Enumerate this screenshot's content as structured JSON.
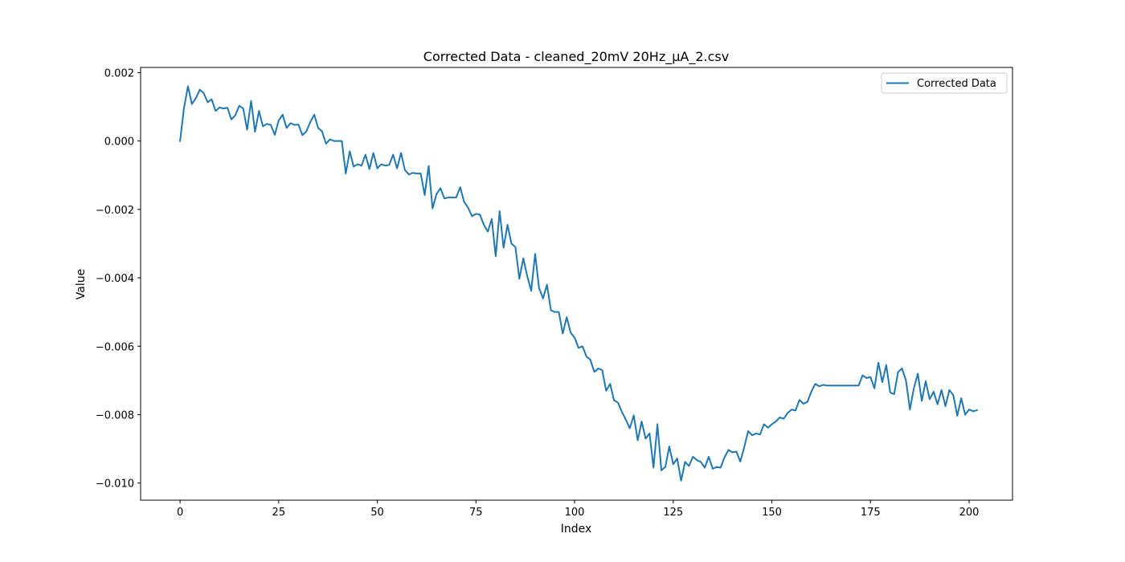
{
  "chart_data": {
    "type": "line",
    "title": "Corrected Data - cleaned_20mV 20Hz_µA_2.csv",
    "xlabel": "Index",
    "ylabel": "Value",
    "xlim": [
      -10,
      211
    ],
    "ylim": [
      -0.0105,
      0.00215
    ],
    "xticks": [
      0,
      25,
      50,
      75,
      100,
      125,
      150,
      175,
      200
    ],
    "xtick_labels": [
      "0",
      "25",
      "50",
      "75",
      "100",
      "125",
      "150",
      "175",
      "200"
    ],
    "yticks": [
      0.002,
      0.0,
      -0.002,
      -0.004,
      -0.006,
      -0.008,
      -0.01
    ],
    "ytick_labels": [
      "0.002",
      "0.000",
      "−0.002",
      "−0.004",
      "−0.006",
      "−0.008",
      "−0.010"
    ],
    "grid": false,
    "legend_position": "top-right",
    "series": [
      {
        "name": "Corrected Data",
        "color": "#1f77b4",
        "x_start": 0,
        "x_step": 1,
        "values": [
          0.0,
          0.00097,
          0.0016,
          0.00108,
          0.00125,
          0.0015,
          0.0014,
          0.00113,
          0.00122,
          0.00088,
          0.00098,
          0.00095,
          0.00097,
          0.00063,
          0.00075,
          0.00103,
          0.00095,
          0.00033,
          0.00117,
          0.00027,
          0.00088,
          0.00043,
          0.0005,
          0.00047,
          0.00018,
          0.0006,
          0.00077,
          0.00038,
          0.00052,
          0.00047,
          0.00048,
          0.00017,
          0.00028,
          0.00055,
          0.00077,
          0.00038,
          0.00028,
          -8e-05,
          5e-05,
          0.0,
          0.0,
          0.0,
          -0.00095,
          -0.0003,
          -0.00075,
          -0.00068,
          -0.00072,
          -0.0004,
          -0.00082,
          -0.00035,
          -0.0008,
          -0.00068,
          -0.00072,
          -0.0007,
          -0.0004,
          -0.0008,
          -0.00035,
          -0.00085,
          -0.00098,
          -0.00093,
          -0.00095,
          -0.00095,
          -0.00158,
          -0.00073,
          -0.00197,
          -0.00155,
          -0.00138,
          -0.00168,
          -0.00165,
          -0.00165,
          -0.00165,
          -0.00135,
          -0.00178,
          -0.00195,
          -0.0022,
          -0.00213,
          -0.00215,
          -0.00245,
          -0.00265,
          -0.00228,
          -0.00337,
          -0.00205,
          -0.00312,
          -0.00245,
          -0.003,
          -0.0031,
          -0.00403,
          -0.00343,
          -0.00395,
          -0.00438,
          -0.0033,
          -0.0043,
          -0.0046,
          -0.0042,
          -0.00495,
          -0.005,
          -0.005,
          -0.00563,
          -0.00515,
          -0.0056,
          -0.00575,
          -0.00605,
          -0.006,
          -0.0063,
          -0.0064,
          -0.00675,
          -0.00665,
          -0.0067,
          -0.0073,
          -0.0071,
          -0.00758,
          -0.00765,
          -0.00792,
          -0.00815,
          -0.0084,
          -0.00802,
          -0.00875,
          -0.0082,
          -0.0087,
          -0.00855,
          -0.00955,
          -0.00828,
          -0.00963,
          -0.00953,
          -0.00893,
          -0.00945,
          -0.00928,
          -0.00993,
          -0.00938,
          -0.0095,
          -0.00923,
          -0.00933,
          -0.00938,
          -0.00955,
          -0.00923,
          -0.00958,
          -0.00953,
          -0.00955,
          -0.00925,
          -0.00903,
          -0.0091,
          -0.00908,
          -0.00937,
          -0.00895,
          -0.00848,
          -0.0086,
          -0.00855,
          -0.00858,
          -0.00828,
          -0.00838,
          -0.00828,
          -0.0082,
          -0.00808,
          -0.00812,
          -0.00795,
          -0.00785,
          -0.00788,
          -0.00757,
          -0.00768,
          -0.00763,
          -0.00733,
          -0.0071,
          -0.00717,
          -0.00713,
          -0.00715,
          -0.00715,
          -0.00715,
          -0.00715,
          -0.00715,
          -0.00715,
          -0.00715,
          -0.00715,
          -0.00715,
          -0.00685,
          -0.00693,
          -0.0069,
          -0.00723,
          -0.00648,
          -0.00705,
          -0.00655,
          -0.00735,
          -0.0074,
          -0.00675,
          -0.00665,
          -0.007,
          -0.00785,
          -0.00723,
          -0.0068,
          -0.0076,
          -0.00702,
          -0.00755,
          -0.00733,
          -0.0077,
          -0.00728,
          -0.00775,
          -0.00728,
          -0.00743,
          -0.00803,
          -0.00752,
          -0.008,
          -0.00785,
          -0.0079,
          -0.00787
        ]
      }
    ]
  }
}
